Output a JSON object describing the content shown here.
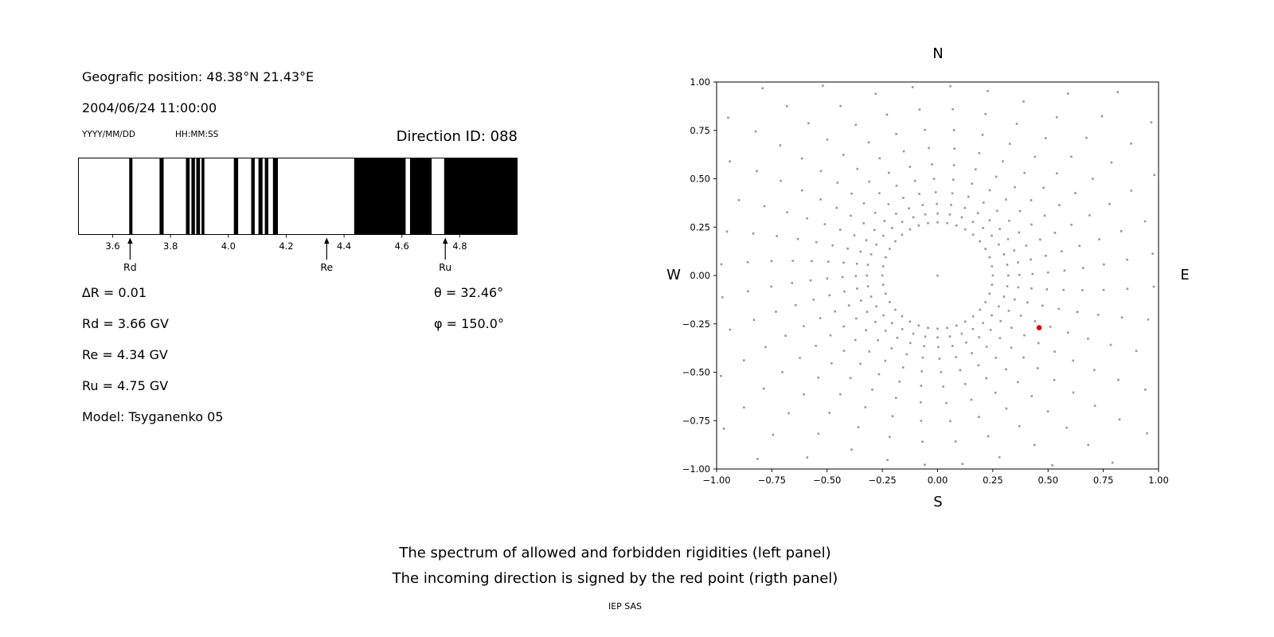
{
  "info": {
    "geo": "Geografic position: 48.38°N 21.43°E",
    "datetime": "2004/06/24 11:00:00",
    "date_format": "YYYY/MM/DD",
    "time_format": "HH:MM:SS",
    "direction_id": "Direction ID: 088",
    "delta_r": "∆R = 0.01",
    "theta": "θ = 32.46°",
    "rd": "Rd = 3.66 GV",
    "phi": "φ = 150.0°",
    "re": "Re = 4.34 GV",
    "ru": "Ru = 4.75 GV",
    "model": "Model: Tsyganenko 05"
  },
  "caption": {
    "line1": "The spectrum of allowed and forbidden rigidities (left panel)",
    "line2": "The incoming direction is signed by the red point (rigth panel)",
    "footer": "IEP SAS"
  },
  "chart_data": [
    {
      "type": "bar",
      "title": "Direction ID: 088",
      "description": "Barcode spectrum of allowed (black) and forbidden (white) rigidities in GV",
      "xlim": [
        3.48,
        5.0
      ],
      "xticks": [
        3.6,
        3.8,
        4.0,
        4.2,
        4.4,
        4.6,
        4.8
      ],
      "xtick_labels": [
        "3.6",
        "3.8",
        "4.0",
        "4.2",
        "4.4",
        "4.6",
        "4.8"
      ],
      "bar_color": "#000000",
      "allowed_bands_GV": [
        [
          3.657,
          3.668
        ],
        [
          3.762,
          3.776
        ],
        [
          3.853,
          3.866
        ],
        [
          3.872,
          3.884
        ],
        [
          3.889,
          3.902
        ],
        [
          3.907,
          3.917
        ],
        [
          4.019,
          4.034
        ],
        [
          4.079,
          4.091
        ],
        [
          4.104,
          4.118
        ],
        [
          4.126,
          4.138
        ],
        [
          4.154,
          4.171
        ],
        [
          4.435,
          4.613
        ],
        [
          4.628,
          4.703
        ],
        [
          4.746,
          5.0
        ]
      ],
      "cutoff_markers": [
        {
          "label": "Rd",
          "value_GV": 3.66
        },
        {
          "label": "Re",
          "value_GV": 4.34
        },
        {
          "label": "Ru",
          "value_GV": 4.75
        }
      ],
      "delta_R_GV": 0.01
    },
    {
      "type": "scatter",
      "description": "Incoming direction map; gray dots = direction grid, red point = incoming direction",
      "xlim": [
        -1,
        1
      ],
      "ylim": [
        -1,
        1
      ],
      "xtick_labels": [
        "−1.00",
        "−0.75",
        "−0.50",
        "−0.25",
        "0.00",
        "0.25",
        "0.50",
        "0.75",
        "1.00"
      ],
      "ytick_labels": [
        "1.00",
        "0.75",
        "0.50",
        "0.25",
        "0.00",
        "−0.25",
        "−0.50",
        "−0.75",
        "−1.00"
      ],
      "compass": {
        "top": "N",
        "bottom": "S",
        "left": "W",
        "right": "E"
      },
      "red_point": {
        "x": 0.46,
        "y": -0.27,
        "color": "#e00000"
      },
      "gray_dots": {
        "color": "#999999",
        "center_dot": true,
        "ring": {
          "rx": 0.25,
          "ry": 0.275,
          "count": 36
        },
        "spokes": {
          "count": 36,
          "radii": [
            0.32,
            0.37,
            0.43,
            0.5,
            0.575,
            0.66,
            0.755,
            0.862,
            0.98,
            1.11,
            1.25,
            1.4
          ],
          "drift_deg_per_unit": 10
        }
      }
    }
  ]
}
